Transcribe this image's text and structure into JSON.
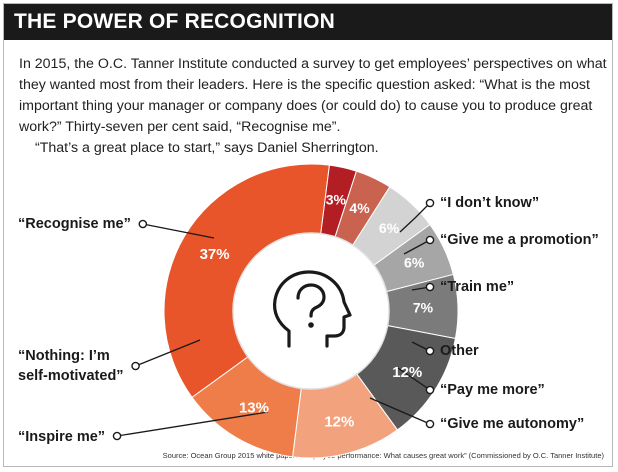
{
  "header": {
    "title": "THE POWER OF RECOGNITION"
  },
  "intro": {
    "paragraph1": "In 2015, the O.C. Tanner Institute conducted a survey to get employees’ perspectives on what they wanted most from their leaders. Here is the specific question asked: “What is the most important thing your manager or company does (or could do) to cause you to produce great work?” Thirty-seven per cent said, “Recognise me”.",
    "paragraph2": "“That’s a great place to start,” says Daniel Sherrington."
  },
  "chart_data": {
    "type": "pie",
    "variant": "donut",
    "center_icon": "head-question-icon",
    "slices": [
      {
        "label": "“Recognise me”",
        "value": 37,
        "display": "37%",
        "color": "#e8552a"
      },
      {
        "label": "“I don’t know”",
        "value": 3,
        "display": "3%",
        "color": "#b21e23"
      },
      {
        "label": "“Give me a promotion”",
        "value": 4,
        "display": "4%",
        "color": "#c9624f"
      },
      {
        "label": "“Train me”",
        "value": 6,
        "display": "6%",
        "color": "#d3d3d3"
      },
      {
        "label": "Other",
        "value": 6,
        "display": "6%",
        "color": "#a6a6a6"
      },
      {
        "label": "“Pay me more”",
        "value": 7,
        "display": "7%",
        "color": "#7b7b7b"
      },
      {
        "label": "“Give me autonomy”",
        "value": 12,
        "display": "12%",
        "color": "#595959"
      },
      {
        "label": "“Inspire me”",
        "value": 12,
        "display": "12%",
        "color": "#f3a27e"
      },
      {
        "label": "“Nothing: I’m self-motivated”",
        "value": 13,
        "display": "13%",
        "color": "#ef7d4a"
      }
    ]
  },
  "source": "Source: Ocean Group 2015 white paper: “Employee performance: What causes great work” (Commissioned by O.C. Tanner Institute)"
}
